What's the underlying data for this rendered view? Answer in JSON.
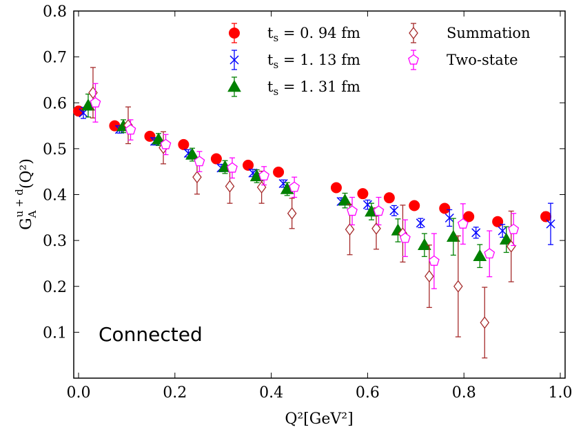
{
  "chart_data": {
    "type": "scatter",
    "title": "",
    "xlabel": "Q²[GeV²]",
    "ylabel": "G_A^{u+d}(Q²)",
    "xlim": [
      -0.01,
      1.01
    ],
    "ylim": [
      0.0,
      0.8
    ],
    "x_ticks": [
      0.0,
      0.2,
      0.4,
      0.6,
      0.8,
      1.0
    ],
    "x_tick_labels": [
      "0.0",
      "0.2",
      "0.4",
      "0.6",
      "0.8",
      "1.0"
    ],
    "y_ticks": [
      0.1,
      0.2,
      0.3,
      0.4,
      0.5,
      0.6,
      0.7,
      0.8
    ],
    "y_tick_labels": [
      "0.1",
      "0.2",
      "0.3",
      "0.4",
      "0.5",
      "0.6",
      "0.7",
      "0.8"
    ],
    "annotation": "Connected",
    "legend_position": "top-right",
    "series": [
      {
        "name": "t_s = 0.94 fm",
        "label_main": "t",
        "label_sub": "s",
        "label_rest": " = 0. 94 fm",
        "marker": "circle",
        "color": "#ff0000",
        "filled": true,
        "x": [
          0.0,
          0.075,
          0.148,
          0.218,
          0.286,
          0.352,
          0.415,
          0.535,
          0.59,
          0.645,
          0.697,
          0.76,
          0.81,
          0.87,
          0.97
        ],
        "y": [
          0.582,
          0.55,
          0.527,
          0.509,
          0.478,
          0.464,
          0.449,
          0.415,
          0.402,
          0.393,
          0.376,
          0.37,
          0.352,
          0.341,
          0.352
        ],
        "err": [
          0.01,
          0.006,
          0.005,
          0.005,
          0.005,
          0.005,
          0.005,
          0.005,
          0.005,
          0.005,
          0.005,
          0.006,
          0.006,
          0.007,
          0.01
        ]
      },
      {
        "name": "t_s = 1.13 fm",
        "label_main": "t",
        "label_sub": "s",
        "label_rest": " = 1. 13 fm",
        "marker": "x",
        "color": "#0000ff",
        "filled": false,
        "x": [
          0.01,
          0.085,
          0.158,
          0.228,
          0.296,
          0.362,
          0.425,
          0.545,
          0.6,
          0.655,
          0.71,
          0.77,
          0.825,
          0.88,
          0.98
        ],
        "y": [
          0.578,
          0.542,
          0.516,
          0.49,
          0.458,
          0.447,
          0.424,
          0.385,
          0.378,
          0.365,
          0.338,
          0.349,
          0.317,
          0.321,
          0.336
        ],
        "err": [
          0.012,
          0.008,
          0.008,
          0.008,
          0.008,
          0.008,
          0.008,
          0.008,
          0.01,
          0.011,
          0.01,
          0.018,
          0.012,
          0.014,
          0.045
        ]
      },
      {
        "name": "t_s = 1.31 fm",
        "label_main": "t",
        "label_sub": "s",
        "label_rest": " = 1. 31 fm",
        "marker": "triangle",
        "color": "#008000",
        "filled": true,
        "x": [
          0.02,
          0.093,
          0.166,
          0.236,
          0.304,
          0.37,
          0.433,
          0.553,
          0.608,
          0.663,
          0.718,
          0.778,
          0.833,
          0.888
        ],
        "y": [
          0.594,
          0.549,
          0.52,
          0.487,
          0.46,
          0.44,
          0.412,
          0.387,
          0.363,
          0.322,
          0.29,
          0.308,
          0.266,
          0.302
        ],
        "err": [
          0.025,
          0.014,
          0.013,
          0.014,
          0.014,
          0.014,
          0.014,
          0.016,
          0.018,
          0.025,
          0.025,
          0.04,
          0.025,
          0.028
        ]
      },
      {
        "name": "Summation",
        "label_main": "Summation",
        "label_sub": "",
        "label_rest": "",
        "marker": "diamond",
        "color": "#a52a2a",
        "filled": false,
        "x": [
          0.03,
          0.103,
          0.176,
          0.246,
          0.314,
          0.38,
          0.443,
          0.563,
          0.618,
          0.673,
          0.728,
          0.788,
          0.843,
          0.898
        ],
        "y": [
          0.622,
          0.551,
          0.502,
          0.438,
          0.418,
          0.416,
          0.359,
          0.324,
          0.326,
          0.315,
          0.222,
          0.2,
          0.121,
          0.287
        ],
        "err": [
          0.055,
          0.04,
          0.035,
          0.037,
          0.037,
          0.035,
          0.033,
          0.055,
          0.045,
          0.062,
          0.068,
          0.11,
          0.077,
          0.077
        ]
      },
      {
        "name": "Two-state",
        "label_main": "Two-state",
        "label_sub": "",
        "label_rest": "",
        "marker": "pentagon",
        "color": "#ff00ff",
        "filled": false,
        "x": [
          0.035,
          0.108,
          0.181,
          0.251,
          0.319,
          0.385,
          0.448,
          0.568,
          0.623,
          0.678,
          0.738,
          0.798,
          0.853,
          0.903
        ],
        "y": [
          0.6,
          0.541,
          0.509,
          0.472,
          0.458,
          0.441,
          0.416,
          0.364,
          0.364,
          0.305,
          0.255,
          0.336,
          0.271,
          0.324
        ],
        "err": [
          0.042,
          0.022,
          0.022,
          0.022,
          0.022,
          0.02,
          0.022,
          0.03,
          0.03,
          0.04,
          0.06,
          0.044,
          0.05,
          0.035
        ]
      }
    ]
  }
}
